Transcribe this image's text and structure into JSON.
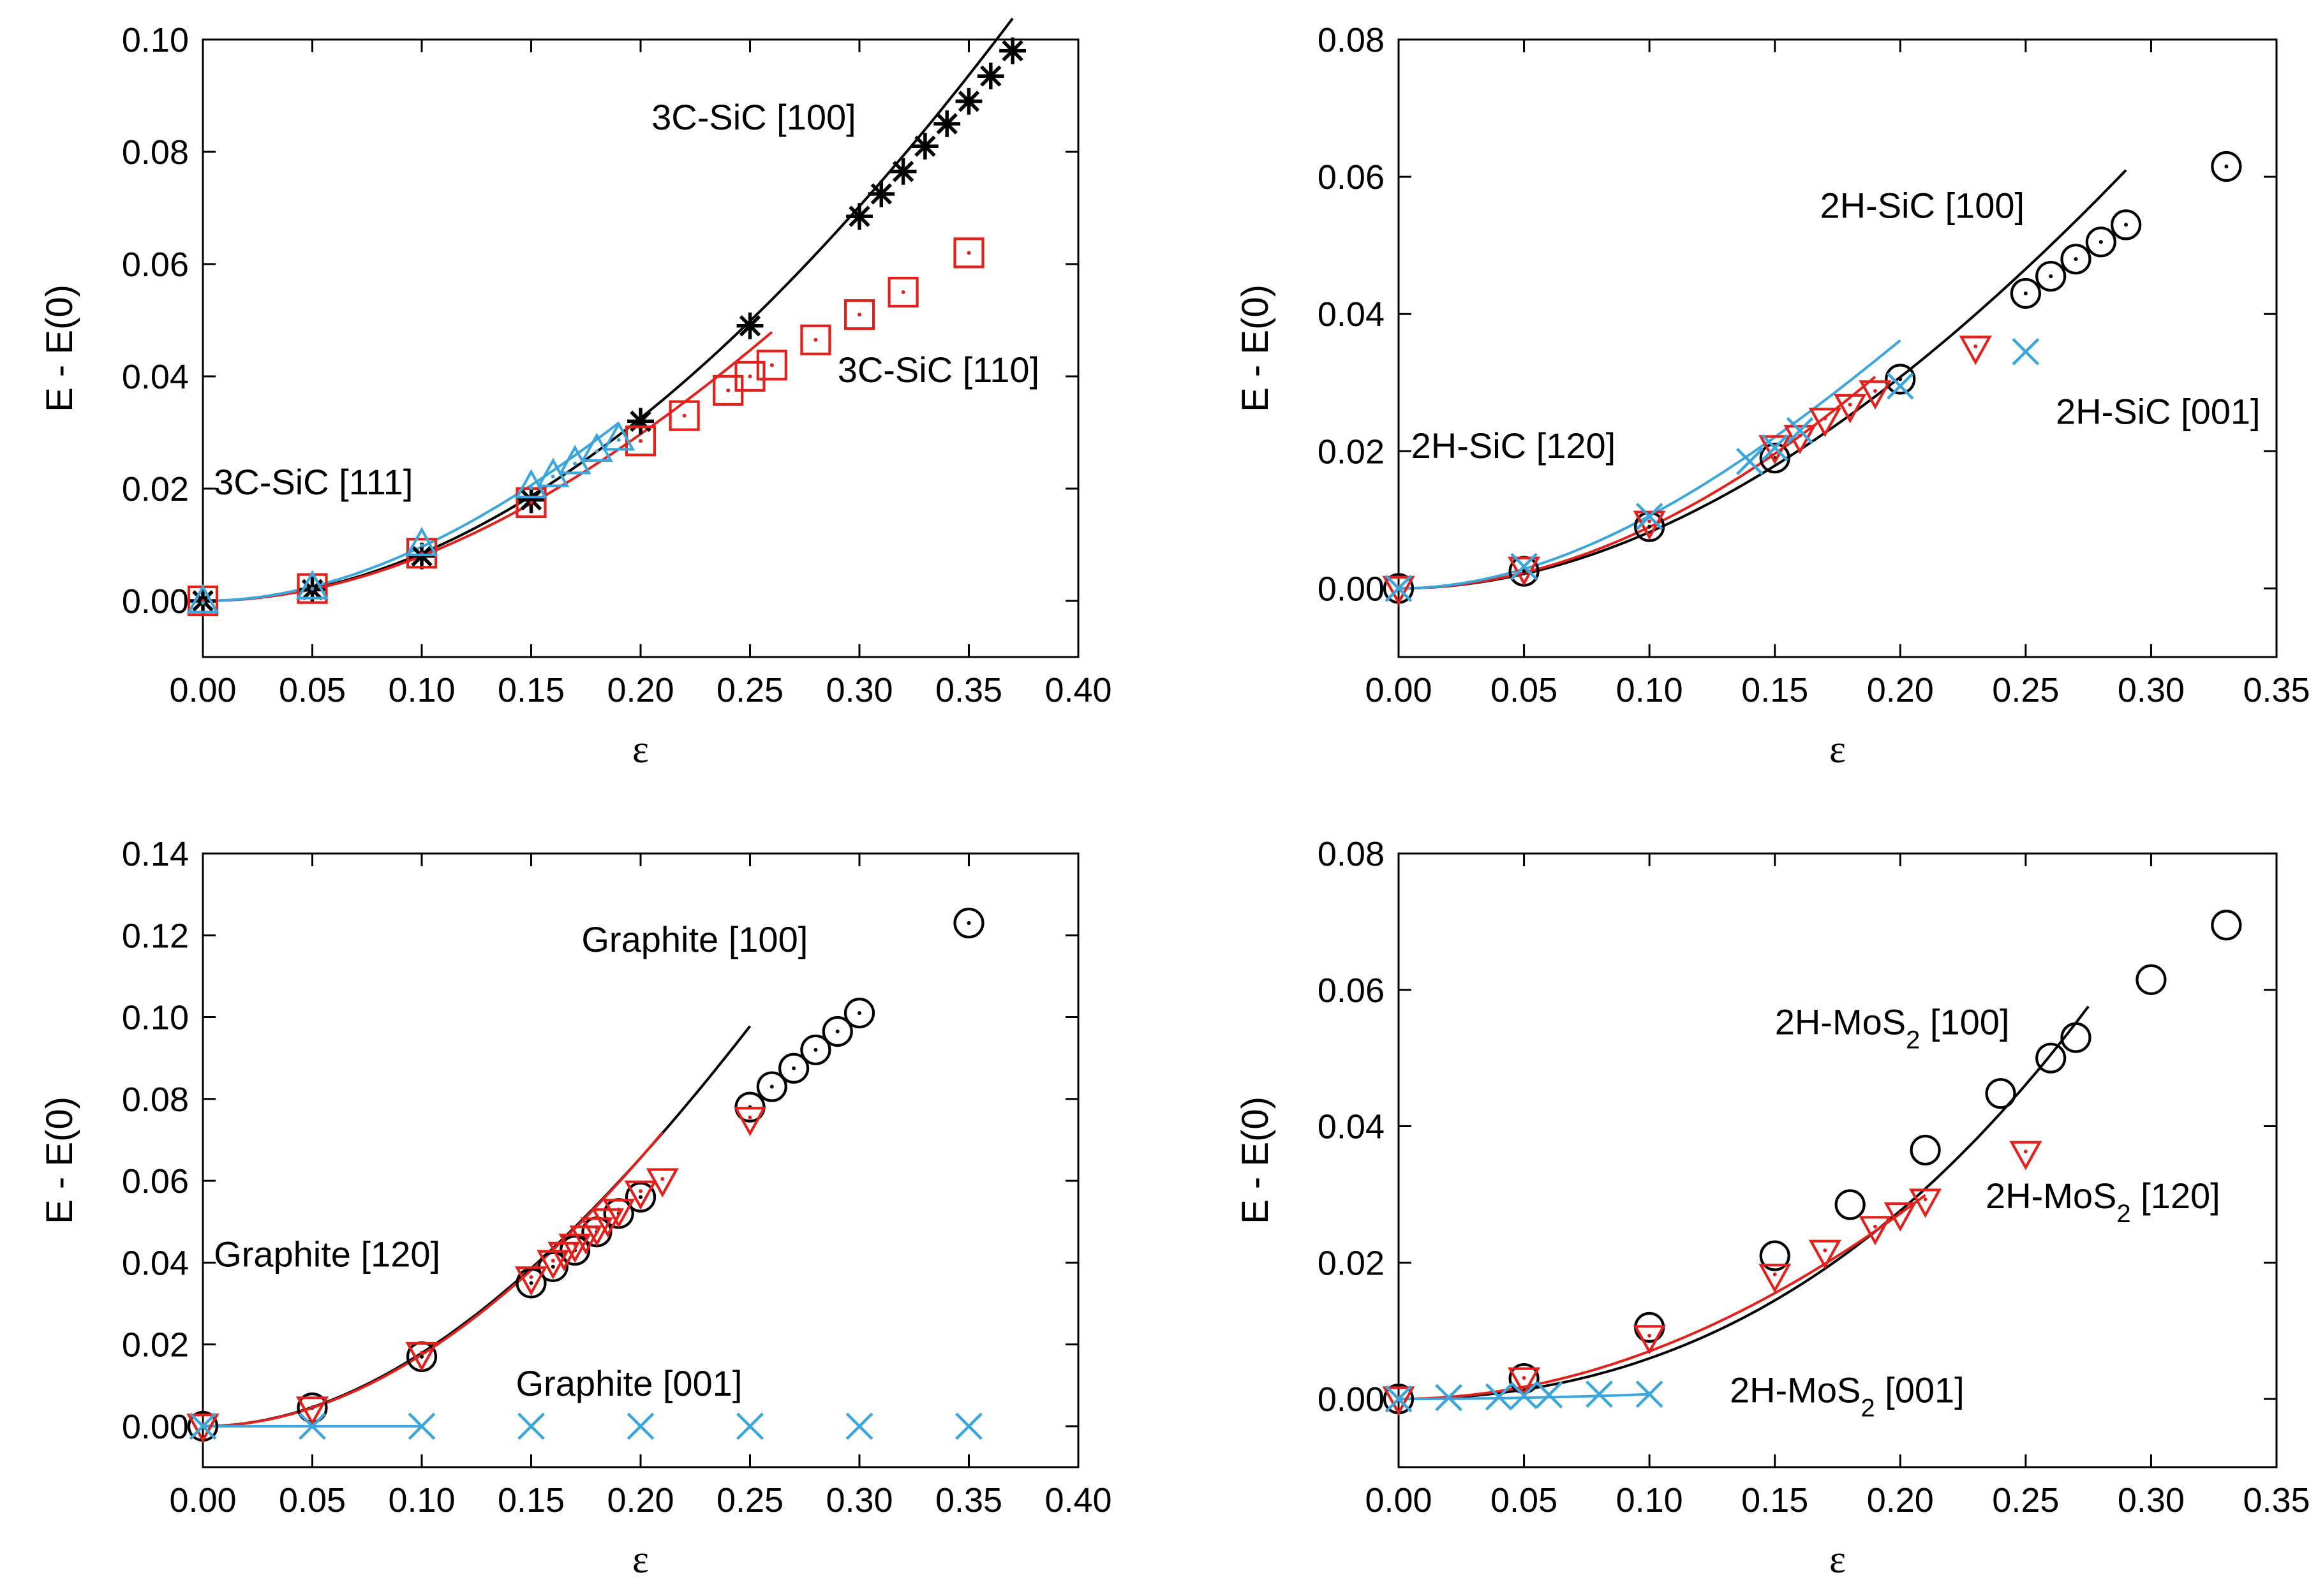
{
  "colors": {
    "black": "#000000",
    "red": "#e3211c",
    "blue": "#3aa6dc",
    "axis": "#000000"
  },
  "chart_data": [
    {
      "type": "scatter",
      "xlabel": "ε",
      "ylabel": "E - E(0)",
      "xlim": [
        0,
        0.4
      ],
      "ylim": [
        -0.01,
        0.1
      ],
      "xticks": [
        "0.00",
        "0.05",
        "0.10",
        "0.15",
        "0.20",
        "0.25",
        "0.30",
        "0.35",
        "0.40"
      ],
      "yticks": [
        "0.00",
        "0.02",
        "0.04",
        "0.06",
        "0.08",
        "0.10"
      ],
      "annotations": [
        {
          "text": "3C-SiC [100]",
          "x": 0.205,
          "y": 0.084
        },
        {
          "text": "3C-SiC [110]",
          "x": 0.29,
          "y": 0.039
        },
        {
          "text": "3C-SiC [111]",
          "x": 0.005,
          "y": 0.019
        }
      ],
      "series": [
        {
          "name": "3C-SiC [100]",
          "color": "black",
          "marker": "asterisk",
          "x": [
            0,
            0.05,
            0.1,
            0.15,
            0.2,
            0.25,
            0.3,
            0.31,
            0.32,
            0.33,
            0.34,
            0.35,
            0.36,
            0.37
          ],
          "y": [
            0,
            0.002,
            0.008,
            0.018,
            0.032,
            0.049,
            0.0685,
            0.0725,
            0.0765,
            0.081,
            0.085,
            0.089,
            0.0935,
            0.098
          ],
          "fit": {
            "a": 0.88,
            "b": -0.33,
            "xmax": 0.37
          }
        },
        {
          "name": "3C-SiC [110]",
          "color": "red",
          "marker": "square",
          "x": [
            0,
            0.05,
            0.1,
            0.15,
            0.2,
            0.22,
            0.24,
            0.25,
            0.26,
            0.28,
            0.3,
            0.32,
            0.35
          ],
          "y": [
            0,
            0.0022,
            0.0085,
            0.0175,
            0.0285,
            0.033,
            0.0375,
            0.04,
            0.042,
            0.0465,
            0.051,
            0.055,
            0.062
          ],
          "fit": {
            "a": 0.857,
            "b": -0.571,
            "xmax": 0.26
          }
        },
        {
          "name": "3C-SiC [111]",
          "color": "blue",
          "marker": "triangle-up",
          "x": [
            0,
            0.05,
            0.1,
            0.15,
            0.16,
            0.17,
            0.18,
            0.19
          ],
          "y": [
            0,
            0.0025,
            0.0102,
            0.0205,
            0.0225,
            0.0248,
            0.027,
            0.029
          ],
          "fit": {
            "a": 1.057,
            "b": -0.94,
            "xmax": 0.19
          }
        }
      ]
    },
    {
      "type": "scatter",
      "xlabel": "ε",
      "ylabel": "E - E(0)",
      "xlim": [
        0,
        0.35
      ],
      "ylim": [
        -0.01,
        0.08
      ],
      "xticks": [
        "0.00",
        "0.05",
        "0.10",
        "0.15",
        "0.20",
        "0.25",
        "0.30",
        "0.35"
      ],
      "yticks": [
        "0.00",
        "0.02",
        "0.04",
        "0.06",
        "0.08"
      ],
      "annotations": [
        {
          "text": "2H-SiC [100]",
          "x": 0.168,
          "y": 0.054
        },
        {
          "text": "2H-SiC [001]",
          "x": 0.262,
          "y": 0.024
        },
        {
          "text": "2H-SiC [120]",
          "x": 0.005,
          "y": 0.019
        }
      ],
      "series": [
        {
          "name": "2H-SiC [100]",
          "color": "black",
          "marker": "circle-dot",
          "x": [
            0,
            0.05,
            0.1,
            0.15,
            0.2,
            0.25,
            0.26,
            0.27,
            0.28,
            0.29,
            0.33
          ],
          "y": [
            0,
            0.0025,
            0.009,
            0.019,
            0.0305,
            0.043,
            0.0455,
            0.048,
            0.0505,
            0.053,
            0.0615
          ],
          "fit": {
            "a": 0.87,
            "b": -0.5,
            "xmax": 0.29
          }
        },
        {
          "name": "2H-SiC [120]",
          "color": "red",
          "marker": "triangle-down",
          "x": [
            0,
            0.05,
            0.1,
            0.15,
            0.16,
            0.17,
            0.18,
            0.19,
            0.23
          ],
          "y": [
            0,
            0.0028,
            0.0095,
            0.0205,
            0.022,
            0.0245,
            0.0265,
            0.0285,
            0.035
          ],
          "fit": {
            "a": 0.94,
            "b": -0.45,
            "xmax": 0.19
          }
        },
        {
          "name": "2H-SiC [001]",
          "color": "blue",
          "marker": "x",
          "x": [
            0,
            0.05,
            0.1,
            0.14,
            0.15,
            0.16,
            0.2,
            0.25
          ],
          "y": [
            0,
            0.0032,
            0.0105,
            0.0185,
            0.0205,
            0.023,
            0.0295,
            0.0345
          ],
          "fit": {
            "a": 1.21,
            "b": -1.53,
            "xmax": 0.2
          }
        }
      ]
    },
    {
      "type": "scatter",
      "xlabel": "ε",
      "ylabel": "E - E(0)",
      "xlim": [
        0,
        0.4
      ],
      "ylim": [
        -0.01,
        0.14
      ],
      "xticks": [
        "0.00",
        "0.05",
        "0.10",
        "0.15",
        "0.20",
        "0.25",
        "0.30",
        "0.35",
        "0.40"
      ],
      "yticks": [
        "0.00",
        "0.02",
        "0.04",
        "0.06",
        "0.08",
        "0.10",
        "0.12",
        "0.14"
      ],
      "annotations": [
        {
          "text": "Graphite [100]",
          "x": 0.173,
          "y": 0.116
        },
        {
          "text": "Graphite [120]",
          "x": 0.005,
          "y": 0.039
        },
        {
          "text": "Graphite [001]",
          "x": 0.143,
          "y": 0.0075
        }
      ],
      "series": [
        {
          "name": "Graphite [100]",
          "color": "black",
          "marker": "circle-dot",
          "x": [
            0,
            0.05,
            0.1,
            0.15,
            0.16,
            0.17,
            0.18,
            0.19,
            0.2,
            0.25,
            0.26,
            0.27,
            0.28,
            0.29,
            0.3,
            0.35
          ],
          "y": [
            0,
            0.0045,
            0.017,
            0.035,
            0.039,
            0.043,
            0.0475,
            0.052,
            0.056,
            0.078,
            0.083,
            0.0875,
            0.092,
            0.0965,
            0.101,
            0.123
          ],
          "fit": {
            "a": 1.94,
            "b": -1.5,
            "xmax": 0.25
          }
        },
        {
          "name": "Graphite [120]",
          "color": "red",
          "marker": "triangle-down",
          "x": [
            0,
            0.05,
            0.1,
            0.15,
            0.16,
            0.165,
            0.17,
            0.175,
            0.18,
            0.185,
            0.19,
            0.2,
            0.21,
            0.25
          ],
          "y": [
            0,
            0.0042,
            0.0175,
            0.036,
            0.04,
            0.042,
            0.044,
            0.046,
            0.048,
            0.0502,
            0.0525,
            0.057,
            0.06,
            0.075
          ],
          "fit": {
            "a": 1.86,
            "b": -1.1,
            "xmax": 0.21
          }
        },
        {
          "name": "Graphite [001]",
          "color": "blue",
          "marker": "x",
          "x": [
            0,
            0.05,
            0.1,
            0.15,
            0.2,
            0.25,
            0.3,
            0.35
          ],
          "y": [
            0,
            0,
            0,
            0,
            0,
            0,
            0,
            0
          ],
          "fit": {
            "a": 0,
            "b": 0,
            "xmax": 0.1
          }
        }
      ]
    },
    {
      "type": "scatter",
      "xlabel": "ε",
      "ylabel": "E - E(0)",
      "xlim": [
        0,
        0.35
      ],
      "ylim": [
        -0.01,
        0.08
      ],
      "xticks": [
        "0.00",
        "0.05",
        "0.10",
        "0.15",
        "0.20",
        "0.25",
        "0.30",
        "0.35"
      ],
      "yticks": [
        "0.00",
        "0.02",
        "0.04",
        "0.06",
        "0.08"
      ],
      "annotations": [
        {
          "text": "2H-MoS",
          "sub": "2",
          "tail": " [100]",
          "x": 0.15,
          "y": 0.0535
        },
        {
          "text": "2H-MoS",
          "sub": "2",
          "tail": " [120]",
          "x": 0.234,
          "y": 0.028
        },
        {
          "text": "2H-MoS",
          "sub": "2",
          "tail": " [001]",
          "x": 0.132,
          "y": -0.0005
        }
      ],
      "series": [
        {
          "name": "2H-MoS2 [100]",
          "color": "black",
          "marker": "circle",
          "x": [
            0,
            0.05,
            0.1,
            0.15,
            0.18,
            0.21,
            0.24,
            0.26,
            0.27,
            0.3,
            0.33
          ],
          "y": [
            0,
            0.003,
            0.0105,
            0.021,
            0.0285,
            0.0365,
            0.0448,
            0.05,
            0.053,
            0.0615,
            0.0695
          ],
          "fit": {
            "a": 0.5,
            "b": 0.95,
            "xmax": 0.275
          }
        },
        {
          "name": "2H-MoS2 [120]",
          "color": "red",
          "marker": "triangle-down",
          "x": [
            0,
            0.05,
            0.1,
            0.15,
            0.17,
            0.19,
            0.2,
            0.21,
            0.25
          ],
          "y": [
            0,
            0.0028,
            0.009,
            0.018,
            0.0215,
            0.025,
            0.027,
            0.029,
            0.036
          ],
          "fit": {
            "a": 0.72,
            "b": -0.2,
            "xmax": 0.21
          }
        },
        {
          "name": "2H-MoS2 [001]",
          "color": "blue",
          "marker": "x",
          "x": [
            0,
            0.02,
            0.04,
            0.05,
            0.06,
            0.08,
            0.1
          ],
          "y": [
            0,
            0.0002,
            0.0003,
            0.0005,
            0.0006,
            0.0007,
            0.0007
          ],
          "fit": {
            "a": 0.07,
            "b": 0,
            "xmax": 0.1
          }
        }
      ]
    }
  ]
}
